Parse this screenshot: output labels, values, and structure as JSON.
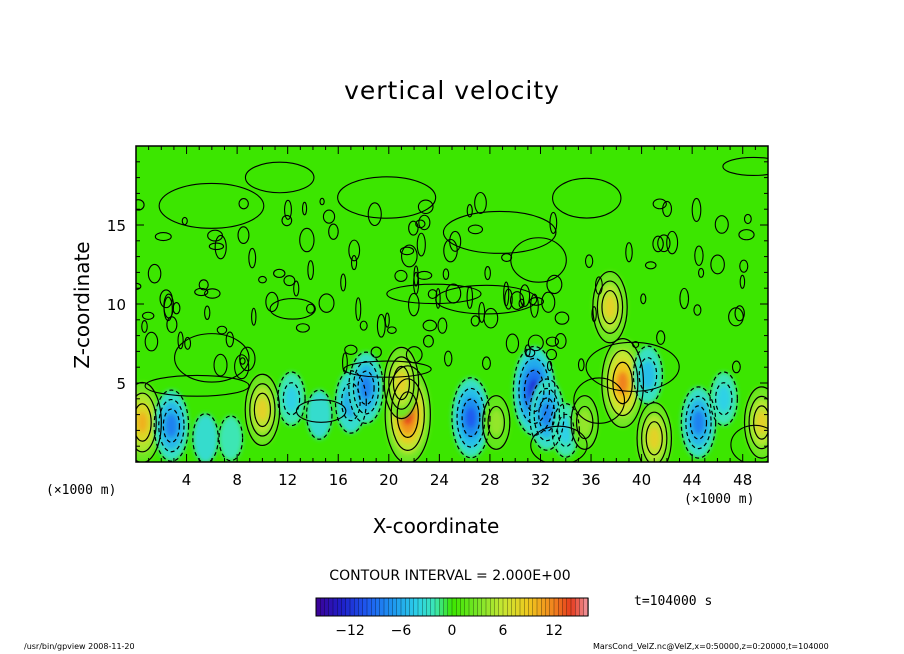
{
  "chart_data": {
    "type": "heatmap",
    "title": "vertical velocity",
    "xlabel": "X-coordinate",
    "ylabel": "Z-coordinate",
    "x_unit_left": "(×1000 m)",
    "x_unit_right": "(×1000 m)",
    "xlim": [
      0,
      50
    ],
    "ylim": [
      0,
      20
    ],
    "x_ticks": [
      "4",
      "8",
      "12",
      "16",
      "20",
      "24",
      "28",
      "32",
      "36",
      "40",
      "44",
      "48"
    ],
    "y_ticks": [
      "5",
      "10",
      "15"
    ],
    "x_tick_values": [
      4,
      8,
      12,
      16,
      20,
      24,
      28,
      32,
      36,
      40,
      44,
      48
    ],
    "y_tick_values": [
      5,
      10,
      15
    ],
    "contour_interval": "CONTOUR INTERVAL = 2.000E+00",
    "colorbar_range": [
      -16,
      16
    ],
    "colorbar_ticks": [
      "−12",
      "−6",
      "0",
      "6",
      "12"
    ],
    "colorbar_tick_values": [
      -12,
      -6,
      0,
      6,
      12
    ],
    "time_label": "t=104000 s",
    "features": [
      {
        "x": 0.5,
        "z": 2.5,
        "value": 10
      },
      {
        "x": 2.8,
        "z": 2.3,
        "value": -8
      },
      {
        "x": 5.5,
        "z": 1.5,
        "value": -3
      },
      {
        "x": 7.5,
        "z": 1.5,
        "value": -2
      },
      {
        "x": 10.0,
        "z": 3.3,
        "value": 8
      },
      {
        "x": 12.3,
        "z": 4.0,
        "value": -4
      },
      {
        "x": 14.5,
        "z": 3.0,
        "value": -3
      },
      {
        "x": 17.0,
        "z": 3.8,
        "value": -6
      },
      {
        "x": 18.2,
        "z": 4.7,
        "value": -8
      },
      {
        "x": 21.5,
        "z": 3.0,
        "value": 14
      },
      {
        "x": 21.0,
        "z": 5.0,
        "value": 8
      },
      {
        "x": 26.5,
        "z": 2.8,
        "value": -10
      },
      {
        "x": 28.5,
        "z": 2.5,
        "value": 4
      },
      {
        "x": 31.5,
        "z": 4.5,
        "value": -12
      },
      {
        "x": 32.5,
        "z": 3.0,
        "value": -8
      },
      {
        "x": 34.0,
        "z": 2.0,
        "value": -4
      },
      {
        "x": 35.5,
        "z": 2.5,
        "value": 4
      },
      {
        "x": 38.5,
        "z": 5.0,
        "value": 12
      },
      {
        "x": 40.5,
        "z": 5.5,
        "value": -5
      },
      {
        "x": 41.0,
        "z": 1.5,
        "value": 8
      },
      {
        "x": 44.5,
        "z": 2.5,
        "value": -8
      },
      {
        "x": 46.5,
        "z": 4.0,
        "value": -4
      },
      {
        "x": 49.5,
        "z": 2.5,
        "value": 8
      },
      {
        "x": 37.5,
        "z": 9.8,
        "value": 8
      }
    ]
  },
  "footer": {
    "left": "/usr/bin/gpview  2008-11-20",
    "right": "MarsCond_VelZ.nc@VelZ,x=0:50000,z=0:20000,t=104000"
  },
  "colors": {
    "background_green": "#3ce600",
    "colormap_negative": [
      "#3c0096",
      "#1e1ee6",
      "#1e78f0",
      "#2dc8e6",
      "#3ce6b4"
    ],
    "colormap_positive": [
      "#78e628",
      "#c8e632",
      "#f0c81e",
      "#f08c1e",
      "#e63c1e",
      "#f096a0"
    ]
  }
}
